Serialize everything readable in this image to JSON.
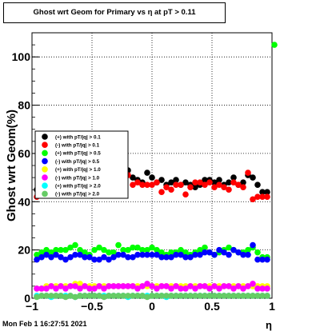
{
  "chart_data": {
    "type": "scatter",
    "title": "Ghost wrt Geom for Primary vs   η at pT > 0.11",
    "xlabel": "η",
    "ylabel": "Ghost wrt Geom(%)",
    "xlim": [
      -1.0,
      1.0
    ],
    "ylim": [
      0,
      110
    ],
    "x_ticks": [
      -1,
      -0.5,
      0,
      0.5,
      1
    ],
    "x_tick_labels": [
      "−1",
      "−0.5",
      "0",
      "0.5",
      "1"
    ],
    "y_ticks": [
      0,
      20,
      40,
      60,
      80,
      100
    ],
    "y_tick_labels": [
      "0",
      "20",
      "40",
      "60",
      "80",
      "100"
    ],
    "grid": true,
    "legend_position": "middle-left",
    "x": [
      -0.96,
      -0.92,
      -0.88,
      -0.84,
      -0.8,
      -0.76,
      -0.72,
      -0.68,
      -0.64,
      -0.6,
      -0.56,
      -0.52,
      -0.48,
      -0.44,
      -0.4,
      -0.36,
      -0.32,
      -0.28,
      -0.24,
      -0.2,
      -0.16,
      -0.12,
      -0.08,
      -0.04,
      0.0,
      0.04,
      0.08,
      0.12,
      0.16,
      0.2,
      0.24,
      0.28,
      0.32,
      0.36,
      0.4,
      0.44,
      0.48,
      0.52,
      0.56,
      0.6,
      0.64,
      0.68,
      0.72,
      0.76,
      0.8,
      0.84,
      0.88,
      0.92,
      0.96
    ],
    "series": [
      {
        "name": "(+) with pT/|q| > 0.1",
        "color": "#000000",
        "values": [
          45,
          47,
          48,
          48,
          49,
          51,
          50,
          49,
          50,
          51,
          48,
          47,
          49,
          48,
          50,
          49,
          49,
          51,
          52,
          53,
          50,
          49,
          48,
          52,
          50,
          48,
          49,
          47,
          48,
          49,
          47,
          48,
          47,
          46,
          47,
          49,
          49,
          48,
          49,
          47,
          48,
          50,
          47,
          48,
          51,
          50,
          47,
          44,
          44
        ]
      },
      {
        "name": "(-) with pT/|q| > 0.1",
        "color": "#ff0000",
        "values": [
          42,
          44,
          45,
          46,
          47,
          48,
          47,
          49,
          48,
          49,
          48,
          47,
          48,
          47,
          48,
          49,
          49,
          50,
          51,
          51,
          47,
          48,
          47,
          47,
          47,
          48,
          44,
          46,
          45,
          47,
          47,
          43,
          46,
          48,
          48,
          47,
          48,
          46,
          47,
          46,
          45,
          48,
          47,
          46,
          52,
          41,
          42,
          42,
          42
        ]
      },
      {
        "name": "(+) with pT/|q| > 0.5",
        "color": "#00ff00",
        "values": [
          18,
          19,
          20,
          19,
          20,
          20,
          20,
          21,
          22,
          20,
          19,
          18,
          20,
          21,
          20,
          19,
          19,
          22,
          20,
          20,
          21,
          21,
          20,
          20,
          21,
          20,
          19,
          18,
          19,
          19,
          20,
          19,
          18,
          19,
          20,
          21,
          19,
          18,
          19,
          20,
          21,
          20,
          19,
          19,
          20,
          21,
          19,
          17,
          17
        ]
      },
      {
        "name": "(-) with pT/|q| > 0.5",
        "color": "#0000ff",
        "values": [
          16,
          17,
          18,
          17,
          18,
          17,
          16,
          17,
          18,
          18,
          17,
          17,
          16,
          16,
          17,
          16,
          17,
          18,
          18,
          17,
          17,
          18,
          18,
          18,
          18,
          18,
          17,
          17,
          17,
          18,
          18,
          17,
          17,
          18,
          18,
          19,
          19,
          18,
          20,
          19,
          18,
          20,
          19,
          18,
          18,
          22,
          16,
          16,
          16
        ]
      },
      {
        "name": "(+) with pT/|q| > 1.0",
        "color": "#ffff00",
        "values": [
          4,
          4,
          5,
          5,
          5,
          5,
          5,
          5,
          6,
          6,
          5,
          5,
          5,
          5,
          5,
          5,
          5,
          5,
          5,
          5,
          5,
          5,
          5,
          5,
          5,
          5,
          5,
          5,
          5,
          5,
          5,
          5,
          5,
          5,
          5,
          5,
          5,
          5,
          5,
          5,
          5,
          5,
          5,
          5,
          5,
          5,
          5,
          5,
          5
        ]
      },
      {
        "name": "(-) with pT/|q| > 1.0",
        "color": "#ff00ff",
        "values": [
          4,
          4,
          4,
          5,
          4,
          5,
          4,
          5,
          5,
          4,
          5,
          4,
          4,
          5,
          4,
          5,
          5,
          5,
          5,
          5,
          5,
          4,
          5,
          6,
          5,
          4,
          5,
          5,
          4,
          5,
          4,
          4,
          5,
          4,
          5,
          5,
          4,
          5,
          4,
          5,
          5,
          4,
          5,
          4,
          5,
          6,
          4,
          4,
          4
        ]
      },
      {
        "name": "(+) with pT/|q| > 2.0",
        "color": "#00ffff",
        "values": [
          1,
          1,
          1,
          0.5,
          1,
          1,
          1,
          1,
          0.5,
          1,
          1,
          1,
          1,
          1,
          1,
          1,
          1,
          1,
          1,
          0.5,
          1,
          1,
          1,
          1,
          1,
          1,
          1,
          0.5,
          1,
          1,
          1,
          1,
          1,
          1,
          1,
          1,
          1,
          1,
          1,
          1,
          1,
          1,
          1,
          1,
          1,
          1,
          1,
          1,
          1
        ]
      },
      {
        "name": "(-) with pT/|q| > 2.0",
        "color": "#66cc66",
        "values": [
          0.5,
          1,
          1,
          1,
          1,
          1,
          0.5,
          1,
          0.5,
          1,
          1,
          1,
          1,
          1,
          0.5,
          1,
          1,
          1,
          1,
          1,
          1,
          1,
          1,
          0.5,
          1,
          1,
          1,
          1,
          1,
          1,
          1,
          1,
          1,
          1,
          1,
          1,
          1,
          1,
          1,
          1,
          1,
          1,
          1,
          1,
          1,
          1,
          1,
          1,
          1
        ]
      }
    ],
    "outlier": {
      "x": 1.02,
      "y": 105,
      "color": "#00ff00"
    }
  },
  "footer_text": "Mon Feb  1 16:27:51 2021"
}
